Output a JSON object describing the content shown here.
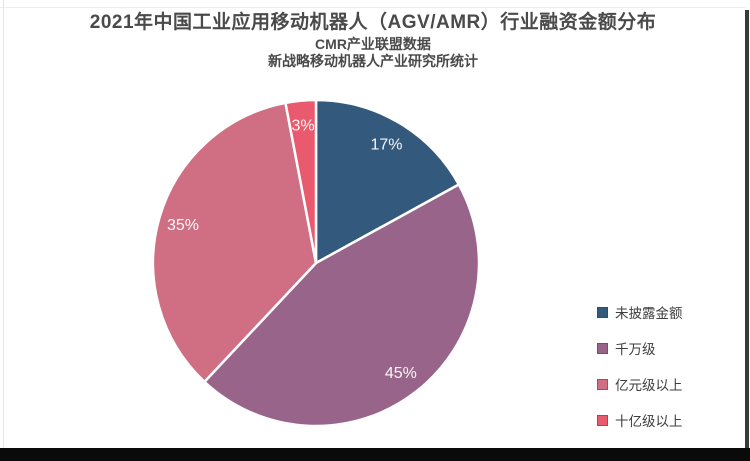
{
  "header": {
    "title": "2021年中国工业应用移动机器人（AGV/AMR）行业融资金额分布",
    "subtitle1": "CMR产业联盟数据",
    "subtitle2": "新战略移动机器人产业研究所统计"
  },
  "chart_data": {
    "type": "pie",
    "title": "2021年中国工业应用移动机器人（AGV/AMR）行业融资金额分布",
    "subtitle": "CMR产业联盟数据 新战略移动机器人产业研究所统计",
    "start_angle_deg": 0,
    "direction": "clockwise",
    "legend_position": "right",
    "data_label_color": "#ffffff",
    "slices": [
      {
        "label": "未披露金额",
        "value_pct": 17,
        "data_label": "17%",
        "color": "#33597c"
      },
      {
        "label": "千万级",
        "value_pct": 45,
        "data_label": "45%",
        "color": "#99648a"
      },
      {
        "label": "亿元级以上",
        "value_pct": 35,
        "data_label": "35%",
        "color": "#d06f83"
      },
      {
        "label": "十亿级以上",
        "value_pct": 3,
        "data_label": "3%",
        "color": "#e95a6f"
      }
    ]
  }
}
